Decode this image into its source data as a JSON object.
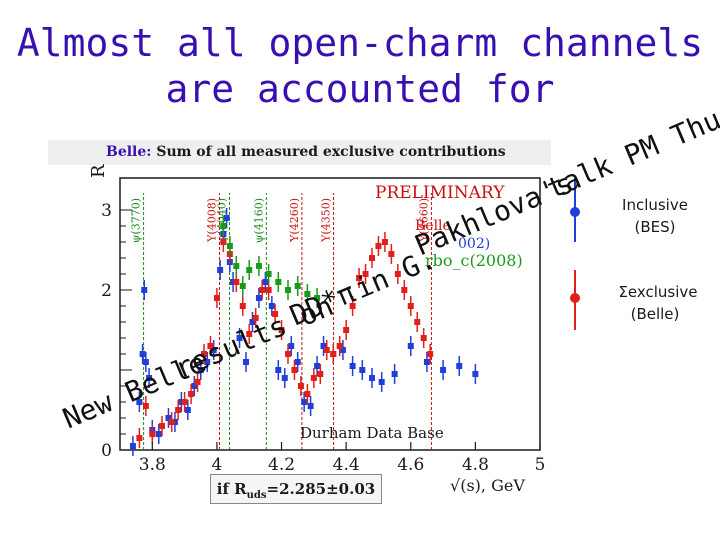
{
  "title_line1": "Almost all open-charm channels",
  "title_line2": "are accounted for",
  "plot_caption_lead": "Belle:",
  "plot_caption_rest": "Sum of all measured exclusive contributions",
  "overlay_line1": "talk PM Thurs",
  "overlay_line2": "Pakhlova's",
  "overlay_line3": "in G.",
  "overlay_line4": "DD*π",
  "overlay_line5": "results on",
  "overlay_line6": "New Belle",
  "legend": {
    "inclusive_line1": "Inclusive",
    "inclusive_line2": "(BES)",
    "exclusive_line1": "Σexclusive",
    "exclusive_line2": "(Belle)",
    "inclusive_color": "#1f3fd6",
    "exclusive_color": "#e0201c"
  },
  "footnote_prefix": "if R",
  "footnote_sub": "uds",
  "footnote_suffix": "=2.285±0.03",
  "x_axis_unit": "√(s), GeV",
  "y_axis_label": "R",
  "chart_data": {
    "type": "scatter",
    "xlim": [
      3.7,
      5.0
    ],
    "ylim": [
      0,
      3.4
    ],
    "xticks": [
      3.8,
      4,
      4.2,
      4.4,
      4.6,
      4.8,
      5
    ],
    "xtick_labels": [
      "3.8",
      "4",
      "4.2",
      "4.4",
      "4.6",
      "4.8",
      "5"
    ],
    "yticks": [
      0,
      1,
      2,
      3
    ],
    "ytick_labels": [
      "0",
      "",
      "2",
      "3"
    ],
    "in_plot_labels": {
      "preliminary": "PRELIMINARY",
      "belle_partial": "Belle",
      "year_partial": "002)",
      "dd_partial": "rbo_c(2008)",
      "database": "Durham Data Base"
    },
    "resonances": [
      {
        "name": "ψ(3770)",
        "x": 3.773,
        "color": "#1a8a1a"
      },
      {
        "name": "ψ(4040)",
        "x": 4.039,
        "color": "#1a8a1a"
      },
      {
        "name": "ψ(4160)",
        "x": 4.153,
        "color": "#1a8a1a"
      },
      {
        "name": "Υ(4008)",
        "x": 4.008,
        "color": "#c81010"
      },
      {
        "name": "Υ(4260)",
        "x": 4.263,
        "color": "#c81010"
      },
      {
        "name": "Υ(4350)",
        "x": 4.361,
        "color": "#c81010"
      },
      {
        "name": "Υ(4660)",
        "x": 4.664,
        "color": "#c81010"
      }
    ],
    "series": [
      {
        "name": "BES",
        "color": "#1f3fd6",
        "points": [
          [
            3.74,
            0.05
          ],
          [
            3.76,
            0.6
          ],
          [
            3.77,
            1.2
          ],
          [
            3.775,
            2.0
          ],
          [
            3.78,
            1.1
          ],
          [
            3.79,
            0.9
          ],
          [
            3.8,
            0.25
          ],
          [
            3.82,
            0.2
          ],
          [
            3.85,
            0.4
          ],
          [
            3.87,
            0.35
          ],
          [
            3.89,
            0.6
          ],
          [
            3.91,
            0.5
          ],
          [
            3.93,
            0.8
          ],
          [
            3.95,
            1.0
          ],
          [
            3.97,
            1.1
          ],
          [
            3.99,
            1.25
          ],
          [
            4.01,
            2.25
          ],
          [
            4.02,
            2.7
          ],
          [
            4.03,
            2.9
          ],
          [
            4.04,
            2.35
          ],
          [
            4.05,
            2.1
          ],
          [
            4.07,
            1.4
          ],
          [
            4.09,
            1.1
          ],
          [
            4.11,
            1.6
          ],
          [
            4.13,
            1.9
          ],
          [
            4.15,
            2.1
          ],
          [
            4.17,
            1.8
          ],
          [
            4.19,
            1.0
          ],
          [
            4.21,
            0.9
          ],
          [
            4.23,
            1.3
          ],
          [
            4.25,
            1.1
          ],
          [
            4.27,
            0.6
          ],
          [
            4.29,
            0.55
          ],
          [
            4.31,
            1.05
          ],
          [
            4.33,
            1.3
          ],
          [
            4.36,
            1.2
          ],
          [
            4.39,
            1.25
          ],
          [
            4.42,
            1.05
          ],
          [
            4.45,
            1.0
          ],
          [
            4.48,
            0.9
          ],
          [
            4.51,
            0.85
          ],
          [
            4.55,
            0.95
          ],
          [
            4.6,
            1.3
          ],
          [
            4.65,
            1.1
          ],
          [
            4.7,
            1.0
          ],
          [
            4.75,
            1.05
          ],
          [
            4.8,
            0.95
          ]
        ]
      },
      {
        "name": "Belle",
        "color": "#e0201c",
        "points": [
          [
            3.76,
            0.15
          ],
          [
            3.78,
            0.55
          ],
          [
            3.8,
            0.2
          ],
          [
            3.83,
            0.3
          ],
          [
            3.86,
            0.35
          ],
          [
            3.88,
            0.5
          ],
          [
            3.9,
            0.6
          ],
          [
            3.92,
            0.7
          ],
          [
            3.94,
            0.85
          ],
          [
            3.96,
            1.2
          ],
          [
            3.98,
            1.3
          ],
          [
            4.0,
            1.9
          ],
          [
            4.02,
            2.6
          ],
          [
            4.04,
            2.45
          ],
          [
            4.06,
            2.1
          ],
          [
            4.08,
            1.8
          ],
          [
            4.1,
            1.45
          ],
          [
            4.12,
            1.65
          ],
          [
            4.14,
            2.0
          ],
          [
            4.16,
            2.0
          ],
          [
            4.18,
            1.7
          ],
          [
            4.2,
            1.5
          ],
          [
            4.22,
            1.2
          ],
          [
            4.24,
            1.0
          ],
          [
            4.26,
            0.8
          ],
          [
            4.28,
            0.7
          ],
          [
            4.3,
            0.9
          ],
          [
            4.32,
            0.95
          ],
          [
            4.34,
            1.25
          ],
          [
            4.36,
            1.2
          ],
          [
            4.38,
            1.3
          ],
          [
            4.4,
            1.5
          ],
          [
            4.42,
            1.8
          ],
          [
            4.44,
            2.15
          ],
          [
            4.46,
            2.2
          ],
          [
            4.48,
            2.4
          ],
          [
            4.5,
            2.55
          ],
          [
            4.52,
            2.6
          ],
          [
            4.54,
            2.45
          ],
          [
            4.56,
            2.2
          ],
          [
            4.58,
            2.0
          ],
          [
            4.6,
            1.8
          ],
          [
            4.62,
            1.6
          ],
          [
            4.64,
            1.4
          ],
          [
            4.66,
            1.2
          ]
        ]
      },
      {
        "name": "Durham",
        "color": "#1a9a1a",
        "points": [
          [
            4.02,
            2.8
          ],
          [
            4.04,
            2.55
          ],
          [
            4.06,
            2.3
          ],
          [
            4.08,
            2.05
          ],
          [
            4.1,
            2.25
          ],
          [
            4.13,
            2.3
          ],
          [
            4.16,
            2.2
          ],
          [
            4.19,
            2.1
          ],
          [
            4.22,
            2.0
          ],
          [
            4.25,
            2.05
          ],
          [
            4.28,
            1.95
          ],
          [
            4.31,
            1.9
          ]
        ]
      }
    ]
  }
}
